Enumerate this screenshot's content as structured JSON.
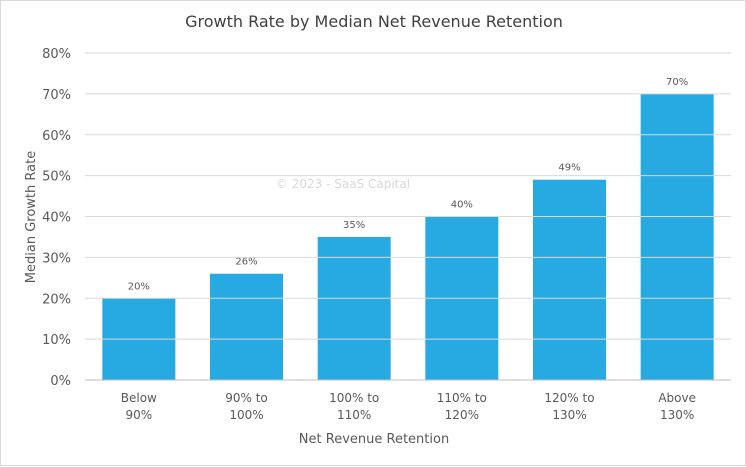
{
  "chart_data": {
    "type": "bar",
    "title": "Growth Rate by Median Net Revenue Retention",
    "xlabel": "Net Revenue Retention",
    "ylabel": "Median Growth Rate",
    "watermark": "© 2023 - SaaS Capital",
    "categories": [
      [
        "Below",
        "90%"
      ],
      [
        "90% to",
        "100%"
      ],
      [
        "100% to",
        "110%"
      ],
      [
        "110% to",
        "120%"
      ],
      [
        "120% to",
        "130%"
      ],
      [
        "Above",
        "130%"
      ]
    ],
    "values": [
      20,
      26,
      35,
      40,
      49,
      70
    ],
    "data_labels": [
      "20%",
      "26%",
      "35%",
      "40%",
      "49%",
      "70%"
    ],
    "ylim": [
      0,
      80
    ],
    "yticks": [
      "0%",
      "10%",
      "20%",
      "30%",
      "40%",
      "50%",
      "60%",
      "70%",
      "80%"
    ],
    "grid": true,
    "legend": "none",
    "bar_color": "#27a9e1"
  }
}
